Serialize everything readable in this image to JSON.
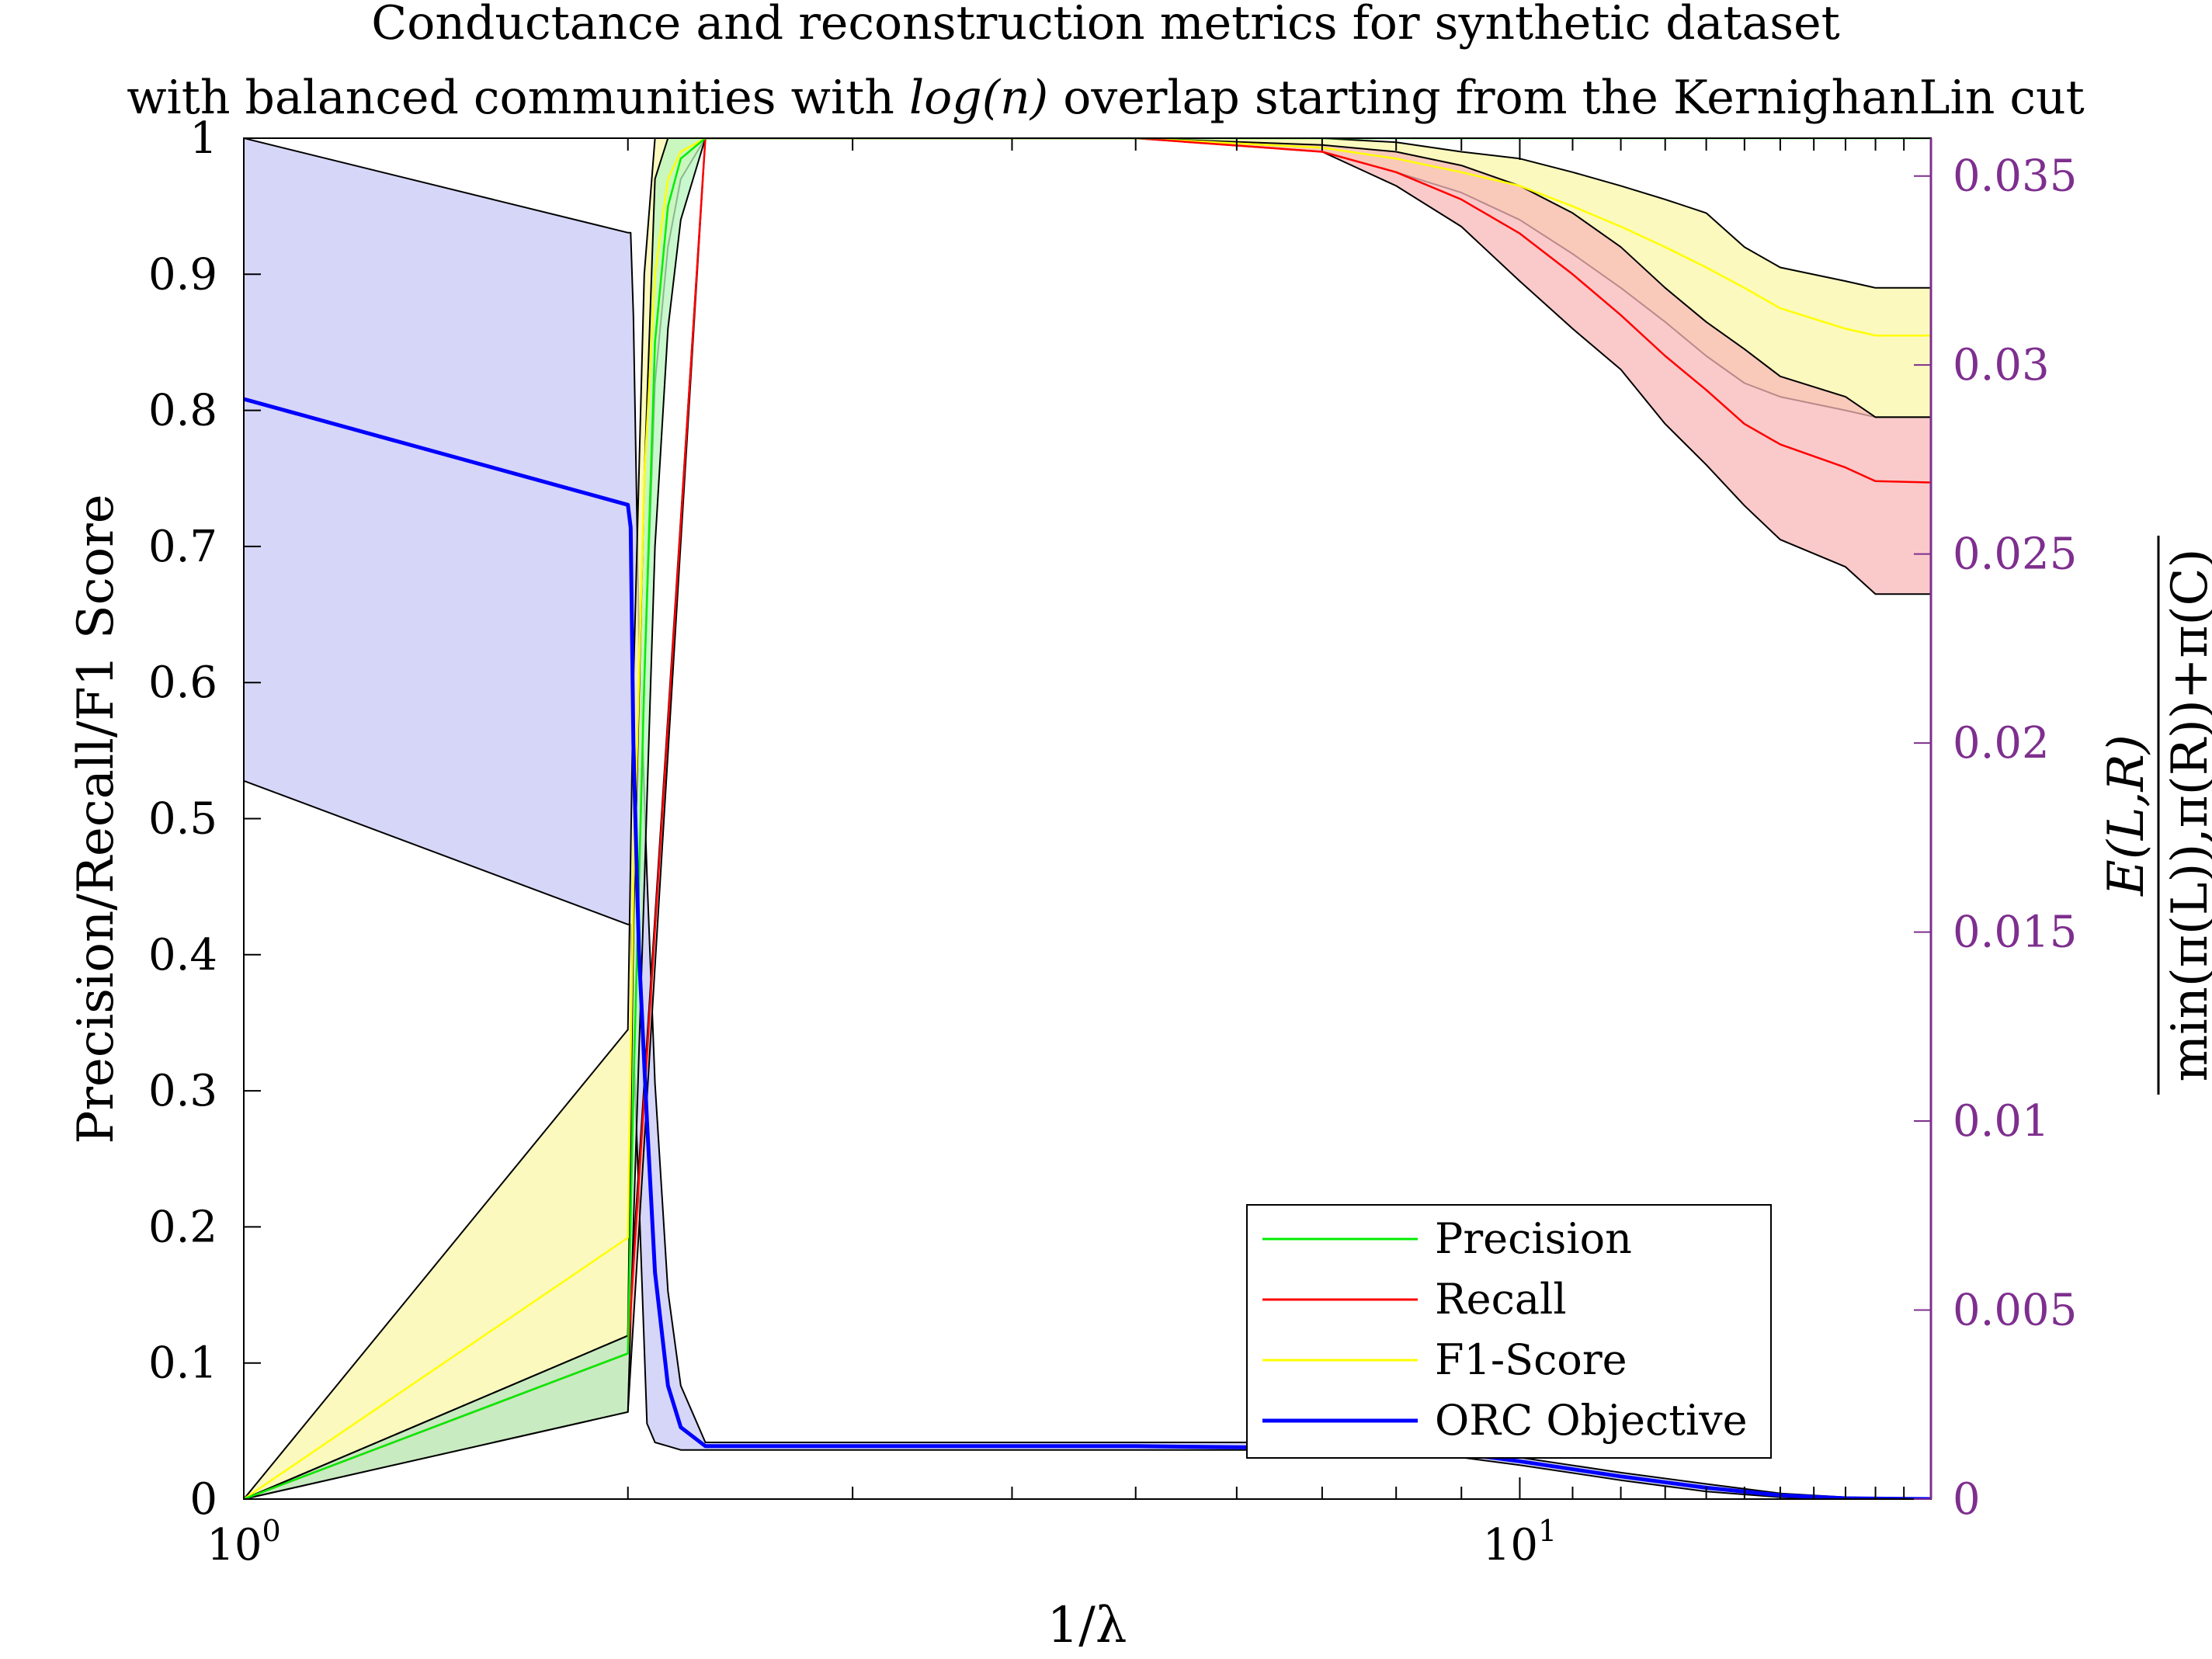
{
  "title": {
    "line1": "Conductance and reconstruction metrics for synthetic dataset",
    "line2_prefix": "with balanced communities with ",
    "line2_math": "log(n)",
    "line2_suffix": " overlap starting from the KernighanLin cut"
  },
  "colors": {
    "precision": "#00EE00",
    "recall": "#FF0000",
    "f1": "#FFFF00",
    "orc": "#0000FF",
    "precision_band": "#B8F5BE",
    "recall_band": "#F8B8B8",
    "f1_band": "#FAF7A8",
    "orc_band": "#C8C8F5",
    "right_axis": "#7E2F8E",
    "band_edge": "#000000"
  },
  "chart_data": {
    "type": "line",
    "x_scale": "log",
    "xlim": [
      1,
      21
    ],
    "ylim_left": [
      0,
      1
    ],
    "ylim_right": [
      0,
      0.036
    ],
    "xlabel": "1/λ",
    "ylabel_left": "Precision/Recall/F1 Score",
    "ylabel_right": {
      "numerator": "E(L,R)",
      "denominator": "min(π(L)),π(R))+π(C)"
    },
    "x_ticks": [
      1,
      10
    ],
    "x_tick_labels": [
      {
        "base": "10",
        "exp": "0"
      },
      {
        "base": "10",
        "exp": "1"
      }
    ],
    "y_ticks_left": [
      0,
      0.1,
      0.2,
      0.3,
      0.4,
      0.5,
      0.6,
      0.7,
      0.8,
      0.9,
      1
    ],
    "y_tick_labels_left": [
      "0",
      "0.1",
      "0.2",
      "0.3",
      "0.4",
      "0.5",
      "0.6",
      "0.7",
      "0.8",
      "0.9",
      "1"
    ],
    "y_ticks_right": [
      0,
      0.005,
      0.01,
      0.015,
      0.02,
      0.025,
      0.03,
      0.035
    ],
    "y_tick_labels_right": [
      "0",
      "0.005",
      "0.01",
      "0.015",
      "0.02",
      "0.025",
      "0.03",
      "0.035"
    ],
    "legend_position": "bottom-right",
    "legend": [
      "Precision",
      "Recall",
      "F1-Score",
      "ORC Objective"
    ],
    "series": [
      {
        "name": "Precision",
        "axis": "left",
        "x": [
          1,
          2,
          2.02,
          2.06,
          2.1,
          2.15,
          2.2,
          2.3,
          5,
          8,
          10,
          12,
          15,
          18,
          21
        ],
        "mean": [
          0,
          0.107,
          0.3,
          0.6,
          0.85,
          0.95,
          0.985,
          1,
          1,
          1,
          1,
          1,
          1,
          1,
          1
        ],
        "lower": [
          0,
          0.064,
          0.2,
          0.45,
          0.7,
          0.86,
          0.94,
          1,
          1,
          1,
          1,
          1,
          1,
          1,
          1
        ],
        "upper": [
          0,
          0.12,
          0.42,
          0.75,
          0.97,
          1,
          1,
          1,
          1,
          1,
          1,
          1,
          1,
          1,
          1
        ]
      },
      {
        "name": "Recall",
        "axis": "left",
        "x": [
          1,
          2,
          2.3,
          5,
          7,
          8,
          9,
          10,
          11,
          12,
          13,
          14,
          15,
          16,
          18,
          19,
          21
        ],
        "mean": [
          0,
          0.107,
          1,
          1,
          0.99,
          0.975,
          0.955,
          0.93,
          0.9,
          0.87,
          0.84,
          0.815,
          0.79,
          0.775,
          0.758,
          0.748,
          0.747
        ],
        "lower": [
          0,
          0.064,
          1,
          1,
          0.99,
          0.965,
          0.935,
          0.895,
          0.86,
          0.83,
          0.79,
          0.76,
          0.73,
          0.705,
          0.685,
          0.665,
          0.665
        ],
        "upper": [
          0,
          0.12,
          1,
          1,
          0.995,
          0.99,
          0.98,
          0.965,
          0.945,
          0.92,
          0.89,
          0.865,
          0.845,
          0.825,
          0.81,
          0.795,
          0.795
        ]
      },
      {
        "name": "F1-Score",
        "axis": "left",
        "x": [
          1,
          2,
          2.02,
          2.06,
          2.1,
          2.15,
          2.2,
          2.3,
          5,
          7,
          8,
          9,
          10,
          11,
          12,
          13,
          14,
          15,
          16,
          18,
          19,
          21
        ],
        "mean": [
          0,
          0.192,
          0.45,
          0.75,
          0.9,
          0.97,
          0.99,
          1,
          1,
          0.993,
          0.985,
          0.975,
          0.965,
          0.95,
          0.935,
          0.92,
          0.905,
          0.89,
          0.875,
          0.86,
          0.855,
          0.855
        ],
        "lower": [
          0,
          0.12,
          0.3,
          0.6,
          0.82,
          0.92,
          0.97,
          1,
          1,
          0.99,
          0.975,
          0.96,
          0.94,
          0.915,
          0.89,
          0.865,
          0.84,
          0.82,
          0.81,
          0.8,
          0.795,
          0.795
        ],
        "upper": [
          0,
          0.345,
          0.6,
          0.9,
          1,
          1,
          1,
          1,
          1,
          1,
          0.997,
          0.99,
          0.985,
          0.975,
          0.965,
          0.955,
          0.945,
          0.92,
          0.905,
          0.895,
          0.89,
          0.89
        ]
      },
      {
        "name": "ORC Objective",
        "axis": "right",
        "x": [
          1,
          2,
          2.01,
          2.02,
          2.04,
          2.07,
          2.1,
          2.15,
          2.2,
          2.3,
          5,
          7,
          9,
          10,
          12,
          14,
          16,
          18,
          21
        ],
        "mean": [
          0.0291,
          0.0263,
          0.0257,
          0.02,
          0.0145,
          0.01,
          0.006,
          0.003,
          0.0019,
          0.0014,
          0.0014,
          0.00135,
          0.0012,
          0.001,
          0.0006,
          0.0003,
          0.0001,
          2e-05,
          0
        ],
        "lower": [
          0.019,
          0.0152,
          0.0152,
          0.012,
          0.008,
          0.002,
          0.0015,
          0.0014,
          0.0013,
          0.0013,
          0.0013,
          0.0013,
          0.0011,
          0.0009,
          0.0005,
          0.0002,
          5e-05,
          0,
          0
        ],
        "upper": [
          0.036,
          0.0335,
          0.0335,
          0.0313,
          0.023,
          0.0165,
          0.011,
          0.0055,
          0.003,
          0.0015,
          0.0015,
          0.0015,
          0.0013,
          0.0011,
          0.0007,
          0.0004,
          0.00015,
          5e-05,
          0
        ]
      }
    ]
  }
}
